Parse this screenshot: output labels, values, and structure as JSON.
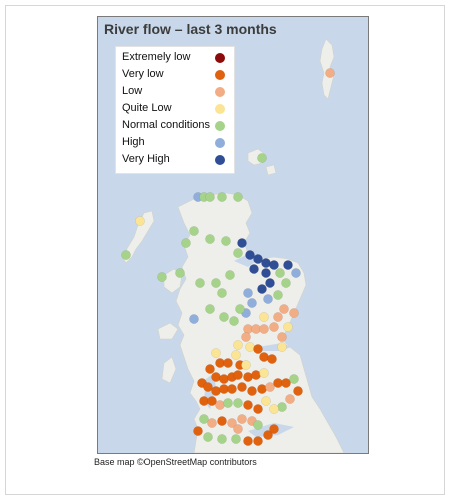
{
  "map": {
    "title": "River flow – last 3 months",
    "caption": "Base map ©OpenStreetMap contributors"
  },
  "legend": [
    {
      "label": "Extremely low",
      "color": "#8b0a0a"
    },
    {
      "label": "Very low",
      "color": "#e0610e"
    },
    {
      "label": "Low",
      "color": "#f2ad84"
    },
    {
      "label": "Quite Low",
      "color": "#fbe493"
    },
    {
      "label": "Normal conditions",
      "color": "#a6d38a"
    },
    {
      "label": "High",
      "color": "#8faedc"
    },
    {
      "label": "Very High",
      "color": "#2f4e95"
    }
  ]
}
